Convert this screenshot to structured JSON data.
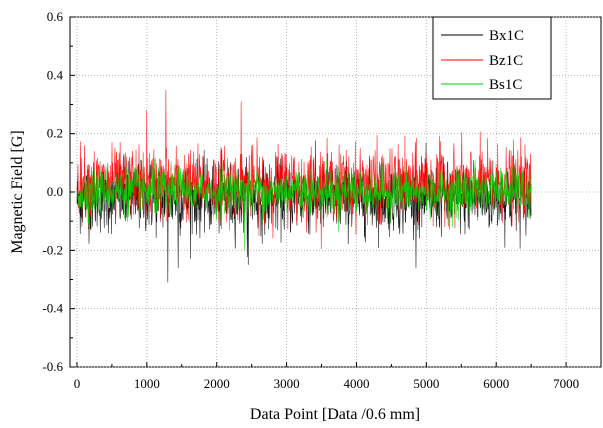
{
  "chart_data": {
    "type": "line",
    "xlabel": "Data Point [Data /0.6 mm]",
    "ylabel": "Magnetic Field [G]",
    "xlim": [
      -100,
      7500
    ],
    "ylim": [
      -0.6,
      0.6
    ],
    "x_ticks": [
      0,
      1000,
      2000,
      3000,
      4000,
      5000,
      6000,
      7000
    ],
    "y_ticks": [
      -0.6,
      -0.4,
      -0.2,
      0.0,
      0.2,
      0.4,
      0.6
    ],
    "x_tick_labels": [
      "0",
      "1000",
      "2000",
      "3000",
      "4000",
      "5000",
      "6000",
      "7000"
    ],
    "y_tick_labels": [
      "-0.6",
      "-0.4",
      "-0.2",
      "0.0",
      "0.2",
      "0.4",
      "0.6"
    ],
    "grid": true,
    "legend_position": "top-right",
    "x_range_of_data": [
      0,
      6500
    ],
    "series": [
      {
        "name": "Bx1C",
        "color": "#000000",
        "approx_mean": -0.02,
        "approx_std": 0.06,
        "notable_peaks": [
          {
            "x": 1300,
            "y": -0.31
          },
          {
            "x": 1450,
            "y": -0.26
          },
          {
            "x": 2450,
            "y": -0.25
          }
        ]
      },
      {
        "name": "Bz1C",
        "color": "#ff0000",
        "approx_mean": 0.03,
        "approx_std": 0.06,
        "notable_peaks": [
          {
            "x": 1000,
            "y": 0.28
          },
          {
            "x": 1270,
            "y": 0.35
          },
          {
            "x": 2350,
            "y": 0.31
          }
        ]
      },
      {
        "name": "Bs1C",
        "color": "#00d000",
        "approx_mean": 0.0,
        "approx_std": 0.04,
        "notable_peaks": [
          {
            "x": 2400,
            "y": -0.2
          }
        ]
      }
    ]
  }
}
